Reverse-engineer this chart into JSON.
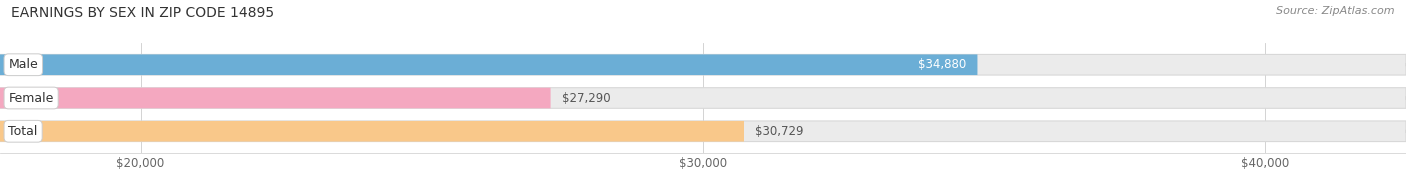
{
  "title": "EARNINGS BY SEX IN ZIP CODE 14895",
  "source": "Source: ZipAtlas.com",
  "categories": [
    "Male",
    "Female",
    "Total"
  ],
  "values": [
    34880,
    27290,
    30729
  ],
  "bar_colors": [
    "#6baed6",
    "#f4a8c0",
    "#f9c88a"
  ],
  "xmin": 17500,
  "xmax": 42500,
  "xlim_left": 17500,
  "xlim_right": 42500,
  "xticks": [
    20000,
    30000,
    40000
  ],
  "xtick_labels": [
    "$20,000",
    "$30,000",
    "$40,000"
  ],
  "title_fontsize": 10,
  "source_fontsize": 8,
  "bar_height": 0.62,
  "figsize": [
    14.06,
    1.96
  ],
  "dpi": 100,
  "background_color": "#ffffff",
  "track_color": "#ebebeb",
  "track_edge_color": "#d8d8d8",
  "value_label_fontsize": 8.5,
  "category_fontsize": 9
}
